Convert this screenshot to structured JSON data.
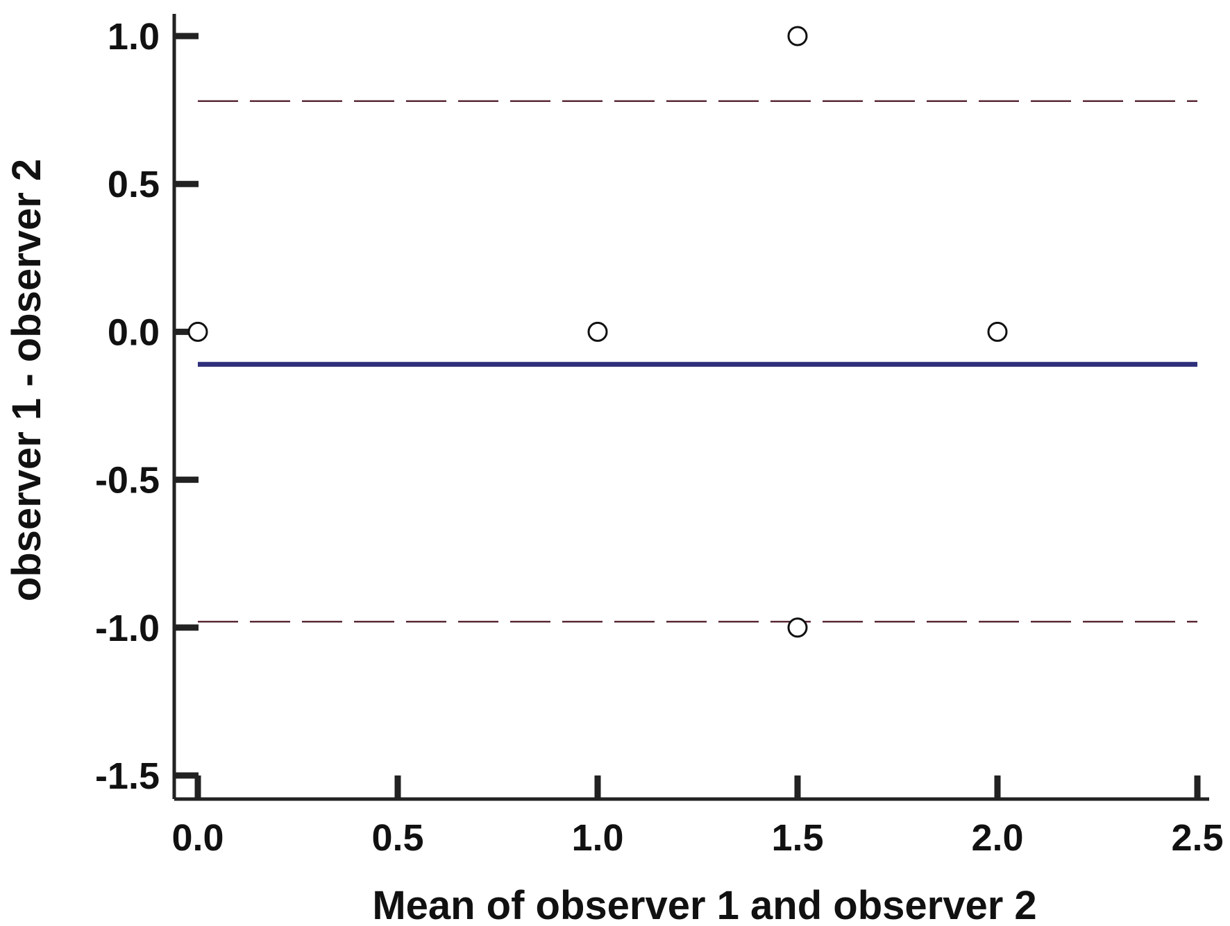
{
  "chart_data": {
    "type": "scatter",
    "title": "",
    "xlabel": "Mean of observer 1 and observer 2",
    "ylabel": "observer 1 - observer 2",
    "xlim": [
      0,
      2.5
    ],
    "ylim": [
      -1.5,
      1.0
    ],
    "x_ticks": [
      "0.0",
      "0.5",
      "1.0",
      "1.5",
      "2.0",
      "2.5"
    ],
    "y_ticks": [
      "1.0",
      "0.5",
      "0.0",
      "-0.5",
      "-1.0",
      "-1.5"
    ],
    "x_tick_values": [
      0,
      0.5,
      1.0,
      1.5,
      2.0,
      2.5
    ],
    "y_tick_values": [
      1.0,
      0.5,
      0.0,
      -0.5,
      -1.0,
      -1.5
    ],
    "points": [
      {
        "x": 0.0,
        "y": 0.0
      },
      {
        "x": 1.0,
        "y": 0.0
      },
      {
        "x": 1.5,
        "y": 1.0
      },
      {
        "x": 1.5,
        "y": -1.0
      },
      {
        "x": 2.0,
        "y": 0.0
      }
    ],
    "reference_lines": [
      {
        "kind": "mean",
        "y": -0.11,
        "style": "solid",
        "color": "#2e2f7a"
      },
      {
        "kind": "upper-limit",
        "y": 0.78,
        "style": "dashed",
        "color": "#5a2a35"
      },
      {
        "kind": "lower-limit",
        "y": -0.98,
        "style": "dashed",
        "color": "#5a2a35"
      }
    ],
    "grid": false,
    "legend": "none",
    "colors": {
      "axis": "#222222",
      "marker_edge": "#111111",
      "marker_fill": "#ffffff"
    }
  }
}
